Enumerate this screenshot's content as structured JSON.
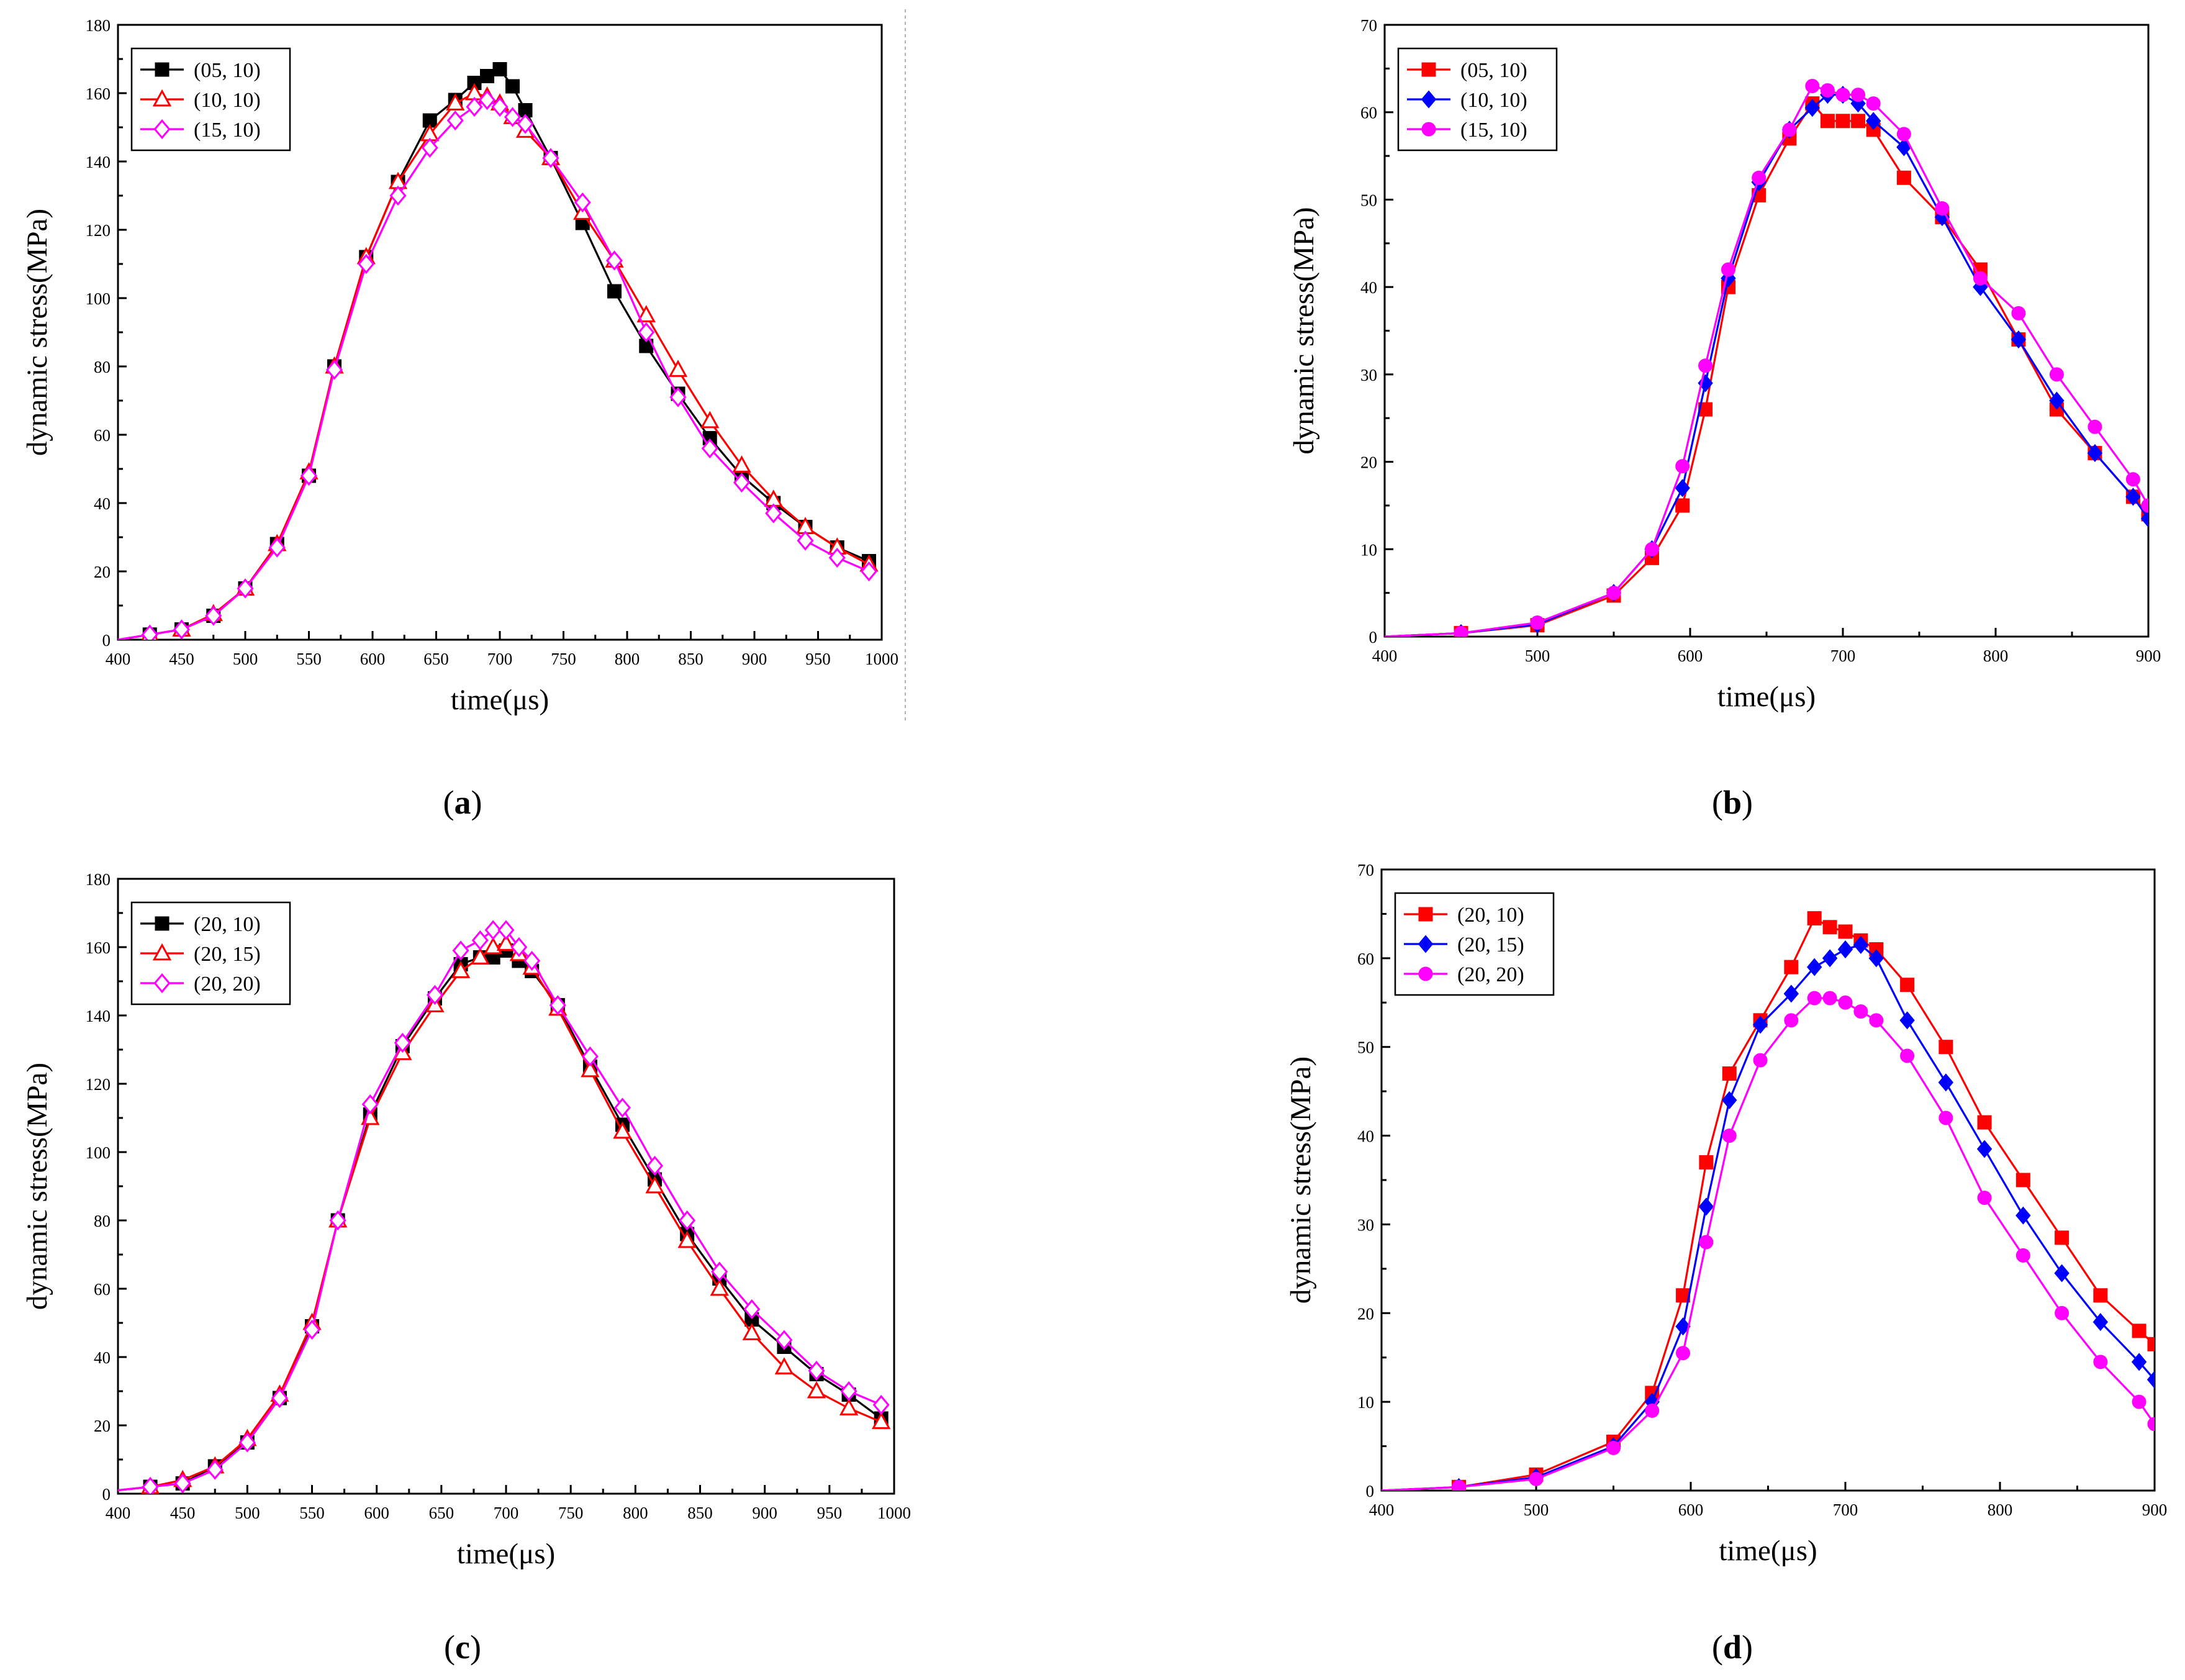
{
  "chart_data": [
    {
      "id": "a",
      "type": "line",
      "caption_letter": "a",
      "xlabel": "time(μs)",
      "ylabel": "dynamic stress(MPa)",
      "xlim": [
        400,
        1000
      ],
      "ylim": [
        0,
        180
      ],
      "xticks": [
        400,
        450,
        500,
        550,
        600,
        650,
        700,
        750,
        800,
        850,
        900,
        950,
        1000
      ],
      "yticks": [
        0,
        20,
        40,
        60,
        80,
        100,
        120,
        140,
        160,
        180
      ],
      "legend": "top-left",
      "series": [
        {
          "name": "(05, 10)",
          "color": "#000000",
          "marker": "square-filled",
          "x": [
            400,
            425,
            450,
            475,
            500,
            525,
            550,
            570,
            595,
            620,
            645,
            665,
            680,
            690,
            700,
            710,
            720,
            740,
            765,
            790,
            815,
            840,
            865,
            890,
            915,
            940,
            965,
            990
          ],
          "y": [
            0,
            1.5,
            3,
            7,
            15,
            28,
            48,
            80,
            112,
            134,
            152,
            158,
            163,
            165,
            167,
            162,
            155,
            141,
            122,
            102,
            86,
            72,
            59,
            48,
            40,
            33,
            27,
            23
          ]
        },
        {
          "name": "(10, 10)",
          "color": "#ff0000",
          "marker": "triangle-open",
          "x": [
            400,
            425,
            450,
            475,
            500,
            525,
            550,
            570,
            595,
            620,
            645,
            665,
            680,
            690,
            700,
            710,
            720,
            740,
            765,
            790,
            815,
            840,
            865,
            890,
            915,
            940,
            965,
            990
          ],
          "y": [
            0,
            1.5,
            3,
            7.5,
            15,
            28,
            49,
            80,
            112,
            134,
            148,
            157,
            160,
            159,
            157,
            153,
            149,
            141,
            125,
            111,
            95,
            79,
            64,
            51,
            41,
            33,
            27,
            22
          ]
        },
        {
          "name": "(15, 10)",
          "color": "#ff00ff",
          "marker": "diamond-open",
          "x": [
            400,
            425,
            450,
            475,
            500,
            525,
            550,
            570,
            595,
            620,
            645,
            665,
            680,
            690,
            700,
            710,
            720,
            740,
            765,
            790,
            815,
            840,
            865,
            890,
            915,
            940,
            965,
            990
          ],
          "y": [
            0,
            1.5,
            3,
            7,
            15,
            27,
            48,
            79,
            110,
            130,
            144,
            152,
            156,
            158,
            156,
            153,
            151,
            141,
            128,
            111,
            90,
            71,
            56,
            46,
            37,
            29,
            24,
            20
          ]
        }
      ]
    },
    {
      "id": "b",
      "type": "line",
      "caption_letter": "b",
      "xlabel": "time(μs)",
      "ylabel": "dynamic stress(MPa)",
      "xlim": [
        400,
        900
      ],
      "ylim": [
        0,
        70
      ],
      "xticks": [
        400,
        500,
        600,
        700,
        800,
        900
      ],
      "yticks": [
        0,
        10,
        20,
        30,
        40,
        50,
        60,
        70
      ],
      "legend": "top-left",
      "series": [
        {
          "name": "(05, 10)",
          "color": "#ff0000",
          "marker": "square-filled",
          "x": [
            400,
            450,
            500,
            550,
            575,
            595,
            610,
            625,
            645,
            665,
            680,
            690,
            700,
            710,
            720,
            740,
            765,
            790,
            815,
            840,
            865,
            890,
            900
          ],
          "y": [
            0,
            0.4,
            1.3,
            4.7,
            9,
            15,
            26,
            40,
            50.5,
            57,
            61,
            59,
            59,
            59,
            58,
            52.5,
            48,
            42,
            34,
            26,
            21,
            16,
            14
          ]
        },
        {
          "name": "(10, 10)",
          "color": "#0000ff",
          "marker": "diamond-filled",
          "x": [
            400,
            450,
            500,
            550,
            575,
            595,
            610,
            625,
            645,
            665,
            680,
            690,
            700,
            710,
            720,
            740,
            765,
            790,
            815,
            840,
            865,
            890,
            900
          ],
          "y": [
            0,
            0.4,
            1.4,
            5,
            10,
            17,
            29,
            41,
            52,
            58,
            60.5,
            62,
            62,
            61,
            59,
            56,
            48,
            40,
            34,
            27,
            21,
            16,
            13.5
          ]
        },
        {
          "name": "(15, 10)",
          "color": "#ff00ff",
          "marker": "circle-filled",
          "x": [
            400,
            450,
            500,
            550,
            575,
            595,
            610,
            625,
            645,
            665,
            680,
            690,
            700,
            710,
            720,
            740,
            765,
            790,
            815,
            840,
            865,
            890,
            900
          ],
          "y": [
            0,
            0.4,
            1.6,
            5,
            10,
            19.5,
            31,
            42,
            52.5,
            58,
            63,
            62.5,
            62,
            62,
            61,
            57.5,
            49,
            41,
            37,
            30,
            24,
            18,
            15
          ]
        }
      ]
    },
    {
      "id": "c",
      "type": "line",
      "caption_letter": "c",
      "xlabel": "time(μs)",
      "ylabel": "dynamic stress(MPa)",
      "xlim": [
        400,
        1000
      ],
      "ylim": [
        0,
        180
      ],
      "xticks": [
        400,
        450,
        500,
        550,
        600,
        650,
        700,
        750,
        800,
        850,
        900,
        950,
        1000
      ],
      "yticks": [
        0,
        20,
        40,
        60,
        80,
        100,
        120,
        140,
        160,
        180
      ],
      "legend": "top-left",
      "series": [
        {
          "name": "(20, 10)",
          "color": "#000000",
          "marker": "square-filled",
          "x": [
            400,
            425,
            450,
            475,
            500,
            525,
            550,
            570,
            595,
            620,
            645,
            665,
            680,
            690,
            700,
            710,
            720,
            740,
            765,
            790,
            815,
            840,
            865,
            890,
            915,
            940,
            965,
            990
          ],
          "y": [
            1,
            2,
            3,
            8,
            15,
            28,
            49,
            80,
            111,
            131,
            145,
            155,
            157,
            157,
            159,
            156,
            153,
            143,
            125,
            108,
            92,
            76,
            63,
            51,
            43,
            35,
            29,
            22
          ]
        },
        {
          "name": "(20, 15)",
          "color": "#ff0000",
          "marker": "triangle-open",
          "x": [
            400,
            425,
            450,
            475,
            500,
            525,
            550,
            570,
            595,
            620,
            645,
            665,
            680,
            690,
            700,
            710,
            720,
            740,
            765,
            790,
            815,
            840,
            865,
            890,
            915,
            940,
            965,
            990
          ],
          "y": [
            1,
            2,
            4,
            8,
            16,
            29,
            50,
            80,
            110,
            129,
            143,
            153,
            157,
            160,
            161,
            158,
            154,
            142,
            124,
            106,
            90,
            74,
            60,
            47,
            37,
            30,
            25,
            21
          ]
        },
        {
          "name": "(20, 20)",
          "color": "#ff00ff",
          "marker": "diamond-open",
          "x": [
            400,
            425,
            450,
            475,
            500,
            525,
            550,
            570,
            595,
            620,
            645,
            665,
            680,
            690,
            700,
            710,
            720,
            740,
            765,
            790,
            815,
            840,
            865,
            890,
            915,
            940,
            965,
            990
          ],
          "y": [
            1,
            2,
            3,
            7,
            15,
            28,
            48,
            80,
            114,
            132,
            146,
            159,
            162,
            165,
            165,
            160,
            156,
            143,
            128,
            113,
            96,
            80,
            65,
            54,
            45,
            36,
            30,
            26
          ]
        }
      ]
    },
    {
      "id": "d",
      "type": "line",
      "caption_letter": "d",
      "xlabel": "time(μs)",
      "ylabel": "dynamic stress(MPa)",
      "xlim": [
        400,
        900
      ],
      "ylim": [
        0,
        70
      ],
      "xticks": [
        400,
        500,
        600,
        700,
        800,
        900
      ],
      "yticks": [
        0,
        10,
        20,
        30,
        40,
        50,
        60,
        70
      ],
      "legend": "top-left",
      "series": [
        {
          "name": "(20, 10)",
          "color": "#ff0000",
          "marker": "square-filled",
          "x": [
            400,
            450,
            500,
            550,
            575,
            595,
            610,
            625,
            645,
            665,
            680,
            690,
            700,
            710,
            720,
            740,
            765,
            790,
            815,
            840,
            865,
            890,
            900
          ],
          "y": [
            0,
            0.4,
            1.8,
            5.5,
            11,
            22,
            37,
            47,
            53,
            59,
            64.5,
            63.5,
            63,
            62,
            61,
            57,
            50,
            41.5,
            35,
            28.5,
            22,
            18,
            16.5
          ]
        },
        {
          "name": "(20, 15)",
          "color": "#0000ff",
          "marker": "diamond-filled",
          "x": [
            400,
            450,
            500,
            550,
            575,
            595,
            610,
            625,
            645,
            665,
            680,
            690,
            700,
            710,
            720,
            740,
            765,
            790,
            815,
            840,
            865,
            890,
            900
          ],
          "y": [
            0,
            0.4,
            1.5,
            5,
            10,
            18.5,
            32,
            44,
            52.5,
            56,
            59,
            60,
            61,
            61.5,
            60,
            53,
            46,
            38.5,
            31,
            24.5,
            19,
            14.5,
            12.5
          ]
        },
        {
          "name": "(20, 20)",
          "color": "#ff00ff",
          "marker": "circle-filled",
          "x": [
            400,
            450,
            500,
            550,
            575,
            595,
            610,
            625,
            645,
            665,
            680,
            690,
            700,
            710,
            720,
            740,
            765,
            790,
            815,
            840,
            865,
            890,
            900
          ],
          "y": [
            0,
            0.4,
            1.3,
            4.8,
            9,
            15.5,
            28,
            40,
            48.5,
            53,
            55.5,
            55.5,
            55,
            54,
            53,
            49,
            42,
            33,
            26.5,
            20,
            14.5,
            10,
            7.5
          ]
        }
      ]
    }
  ]
}
